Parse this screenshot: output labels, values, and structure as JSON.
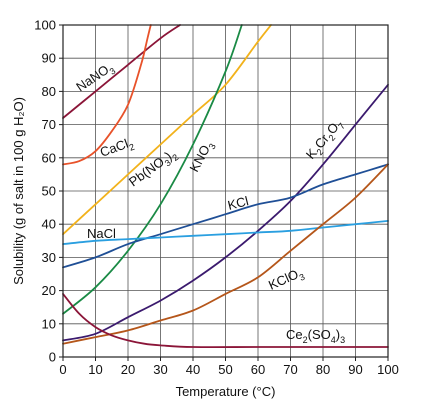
{
  "chart_data": {
    "type": "line",
    "xlabel": "Temperature (°C)",
    "ylabel": "Solubility (g of salt in 100 g H₂O)",
    "xlim": [
      0,
      100
    ],
    "ylim": [
      0,
      100
    ],
    "x_ticks": [
      "0",
      "10",
      "20",
      "30",
      "40",
      "50",
      "60",
      "70",
      "80",
      "90",
      "100"
    ],
    "y_ticks": [
      "0",
      "10",
      "20",
      "30",
      "40",
      "50",
      "60",
      "70",
      "80",
      "90",
      "100"
    ],
    "grid": true,
    "series": [
      {
        "id": "nano3",
        "name": "NaNO₃",
        "label_main": "NaNO",
        "label_parts": [
          [
            "NaNO",
            ""
          ],
          [
            "3",
            "sub"
          ]
        ],
        "color": "#8b1538",
        "x": [
          0,
          10,
          20,
          30,
          36
        ],
        "y": [
          72,
          80,
          88,
          96,
          100
        ]
      },
      {
        "id": "cacl2",
        "name": "CaCl₂",
        "label_parts": [
          [
            "CaCl",
            ""
          ],
          [
            "2",
            "sub"
          ]
        ],
        "color": "#e8522a",
        "x": [
          0,
          5,
          10,
          15,
          20,
          24,
          26,
          27
        ],
        "y": [
          58,
          59,
          62,
          68,
          76,
          88,
          96,
          100
        ]
      },
      {
        "id": "pbno32",
        "name": "Pb(NO₃)₂",
        "label_parts": [
          [
            "Pb(NO",
            ""
          ],
          [
            "3",
            "sub"
          ],
          [
            ")",
            ""
          ],
          [
            "2",
            "sub"
          ]
        ],
        "color": "#f2b21b",
        "x": [
          0,
          10,
          20,
          30,
          40,
          50,
          60,
          64
        ],
        "y": [
          37,
          46,
          55,
          64,
          73,
          82,
          95,
          100
        ]
      },
      {
        "id": "kno3",
        "name": "KNO₃",
        "label_parts": [
          [
            "KNO",
            ""
          ],
          [
            "3",
            "sub"
          ]
        ],
        "color": "#1a8a45",
        "x": [
          0,
          10,
          20,
          30,
          40,
          50,
          55
        ],
        "y": [
          13,
          21,
          32,
          46,
          64,
          86,
          100
        ]
      },
      {
        "id": "k2cr2o7",
        "name": "K₂Cr₂O₇",
        "label_parts": [
          [
            "K",
            ""
          ],
          [
            "2",
            "sub"
          ],
          [
            "Cr",
            ""
          ],
          [
            "2",
            "sub"
          ],
          [
            "O",
            ""
          ],
          [
            "7",
            "sub"
          ]
        ],
        "color": "#3b1a6e",
        "x": [
          0,
          10,
          20,
          30,
          40,
          50,
          60,
          70,
          80,
          90,
          100
        ],
        "y": [
          5,
          7,
          12,
          17,
          23,
          30,
          38,
          47,
          58,
          70,
          82
        ]
      },
      {
        "id": "kcl",
        "name": "KCl",
        "label_parts": [
          [
            "KCl",
            ""
          ]
        ],
        "color": "#1f4f96",
        "x": [
          0,
          10,
          20,
          30,
          40,
          50,
          60,
          70,
          80,
          90,
          100
        ],
        "y": [
          27,
          30,
          34,
          37,
          40,
          43,
          46,
          48,
          52,
          55,
          58
        ]
      },
      {
        "id": "nacl",
        "name": "NaCl",
        "label_parts": [
          [
            "NaCl",
            ""
          ]
        ],
        "color": "#2a9fe0",
        "x": [
          0,
          10,
          20,
          30,
          40,
          50,
          60,
          70,
          80,
          90,
          100
        ],
        "y": [
          34,
          35,
          35.5,
          36,
          36.5,
          37,
          37.5,
          38,
          39,
          40,
          41
        ]
      },
      {
        "id": "kclo3",
        "name": "KClO₃",
        "label_parts": [
          [
            "KClO",
            ""
          ],
          [
            "3",
            "sub"
          ]
        ],
        "color": "#b5561a",
        "x": [
          0,
          10,
          20,
          30,
          40,
          50,
          60,
          70,
          80,
          90,
          100
        ],
        "y": [
          4,
          6,
          8,
          11,
          14,
          19,
          24,
          32,
          40,
          48,
          58
        ]
      },
      {
        "id": "ce2so43",
        "name": "Ce₂(SO₄)₃",
        "label_parts": [
          [
            "Ce",
            ""
          ],
          [
            "2",
            "sub"
          ],
          [
            "(SO",
            ""
          ],
          [
            "4",
            "sub"
          ],
          [
            ")",
            ""
          ],
          [
            "3",
            "sub"
          ]
        ],
        "color": "#8b1538",
        "x": [
          0,
          5,
          10,
          15,
          20,
          25,
          30,
          40,
          60,
          80,
          100
        ],
        "y": [
          19,
          13,
          9,
          6.5,
          5,
          4,
          3.5,
          3,
          3,
          3,
          3
        ]
      }
    ]
  }
}
